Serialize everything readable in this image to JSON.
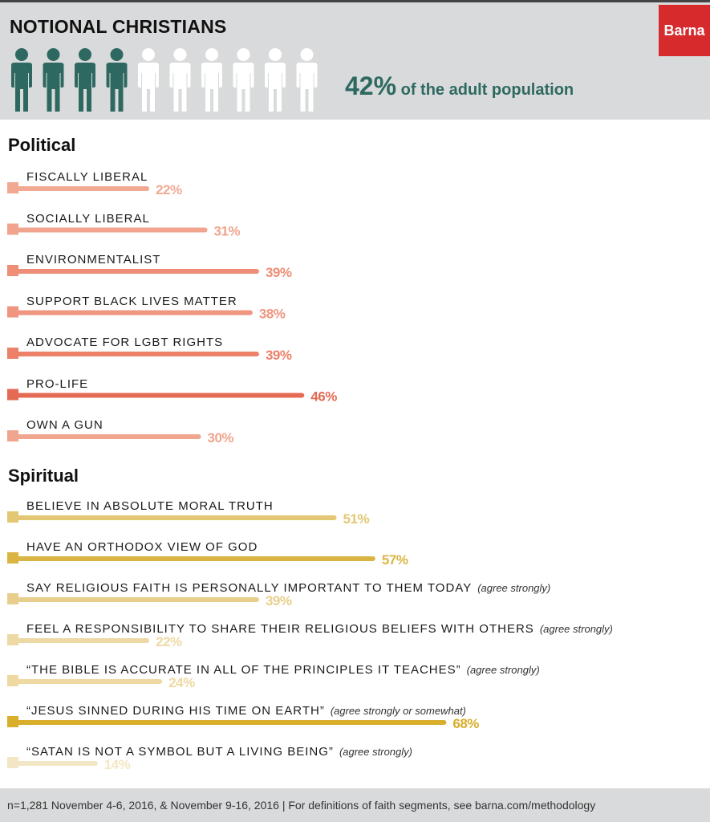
{
  "header": {
    "title": "NOTIONAL CHRISTIANS",
    "logo": "Barna",
    "pct": "42%",
    "pct_text": "of the adult population",
    "people": {
      "filled": 4,
      "total": 10
    }
  },
  "sections": {
    "political": "Political",
    "spiritual": "Spiritual"
  },
  "colors": {
    "accent_teal": "#2e6961",
    "logo_red": "#d62a2c",
    "political": [
      "#f2a992",
      "#f0a48d",
      "#ee8e77",
      "#ef9580",
      "#ec8068",
      "#e46a53",
      "#f0a58f"
    ],
    "spiritual": [
      "#e4c774",
      "#dbb543",
      "#e7cf8b",
      "#edd9a5",
      "#eed9a3",
      "#d8ae2a",
      "#f3e6c4"
    ]
  },
  "chart_data": [
    {
      "type": "bar",
      "title": "Political",
      "categories": [
        "FISCALLY LIBERAL",
        "SOCIALLY LIBERAL",
        "ENVIRONMENTALIST",
        "SUPPORT BLACK LIVES MATTER",
        "ADVOCATE FOR LGBT RIGHTS",
        "PRO-LIFE",
        "OWN A GUN"
      ],
      "notes": [
        "",
        "",
        "",
        "",
        "",
        "",
        ""
      ],
      "values": [
        22,
        31,
        39,
        38,
        39,
        46,
        30
      ],
      "labels": [
        "22%",
        "31%",
        "39%",
        "38%",
        "39%",
        "46%",
        "30%"
      ],
      "xlim": [
        0,
        100
      ]
    },
    {
      "type": "bar",
      "title": "Spiritual",
      "categories": [
        "BELIEVE IN ABSOLUTE MORAL TRUTH",
        "HAVE AN ORTHODOX VIEW OF GOD",
        "SAY RELIGIOUS FAITH IS PERSONALLY IMPORTANT TO THEM TODAY",
        "FEEL A RESPONSIBILITY TO SHARE THEIR RELIGIOUS BELIEFS WITH OTHERS",
        "“THE BIBLE IS ACCURATE IN ALL OF THE PRINCIPLES IT TEACHES”",
        "“JESUS SINNED DURING HIS TIME ON EARTH”",
        "“SATAN IS NOT A SYMBOL BUT A LIVING BEING”"
      ],
      "notes": [
        "",
        "",
        "(agree strongly)",
        "(agree strongly)",
        "(agree strongly)",
        "(agree strongly or somewhat)",
        "(agree strongly)"
      ],
      "values": [
        51,
        57,
        39,
        22,
        24,
        68,
        14
      ],
      "labels": [
        "51%",
        "57%",
        "39%",
        "22%",
        "24%",
        "68%",
        "14%"
      ],
      "xlim": [
        0,
        100
      ]
    }
  ],
  "footer": {
    "text": "n=1,281 November 4-6, 2016, & November 9-16, 2016 | For definitions of faith segments, see barna.com/methodology"
  }
}
